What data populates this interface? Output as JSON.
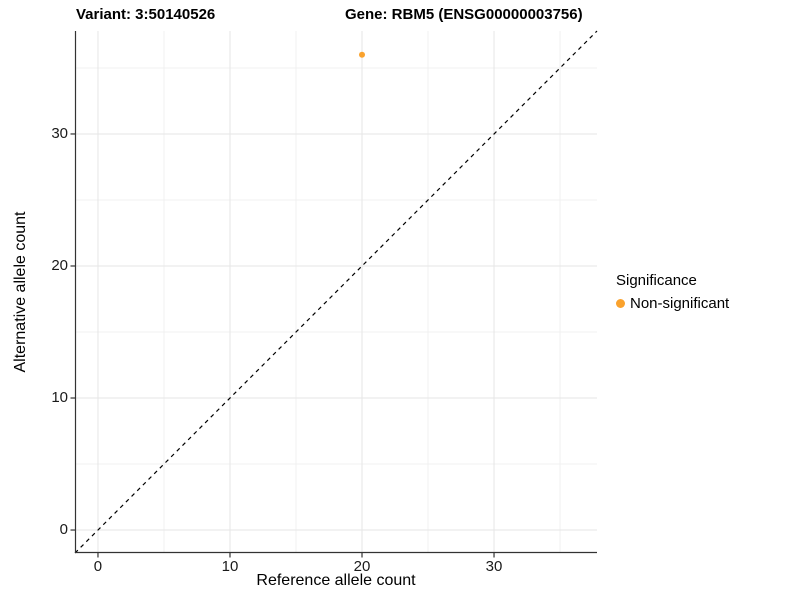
{
  "titles": {
    "variant": "Variant: 3:50140526",
    "gene": "Gene: RBM5 (ENSG00000003756)"
  },
  "legend": {
    "title": "Significance",
    "items": [
      {
        "label": "Non-significant",
        "color": "#FAA22D"
      }
    ]
  },
  "chart_data": {
    "type": "scatter",
    "title": "Variant: 3:50140526   Gene: RBM5 (ENSG00000003756)",
    "xlabel": "Reference allele count",
    "ylabel": "Alternative allele count",
    "xlim": [
      -1.74,
      37.8
    ],
    "ylim": [
      -1.74,
      37.8
    ],
    "x_major_ticks": [
      0,
      10,
      20,
      30
    ],
    "y_major_ticks": [
      0,
      10,
      20,
      30
    ],
    "x_minor_gridlines": [
      5,
      15,
      25,
      35
    ],
    "y_minor_gridlines": [
      5,
      15,
      25,
      35
    ],
    "grid": "on",
    "legend_position": "right",
    "series": [
      {
        "name": "Non-significant",
        "color": "#FAA22D",
        "points": [
          {
            "x": 20,
            "y": 36
          }
        ]
      }
    ],
    "reference_line": {
      "type": "identity y=x",
      "style": "dashed",
      "color": "#000000"
    }
  },
  "colors": {
    "background": "#ffffff",
    "grid_major": "#e6e6e6",
    "grid_minor": "#f0f0f0",
    "axis_line": "#333333",
    "point_orange": "#FAA22D",
    "text": "#000000"
  }
}
